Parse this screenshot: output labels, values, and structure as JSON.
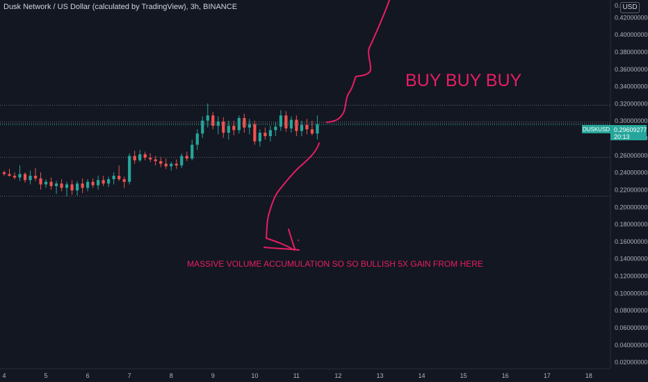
{
  "header": {
    "title": "Dusk Network / US Dollar (calculated by TradingView), 3h, BINANCE"
  },
  "currency_button": {
    "label": "USD"
  },
  "price_tag": {
    "symbol": "DUSKUSD",
    "price": "0.29609277",
    "countdown": "20:13",
    "value": 0.296
  },
  "annotations": {
    "buy_text": "BUY BUY BUY",
    "bottom_text": "MASSIVE VOLUME ACCUMULATION SO SO BULLISH 5X GAIN FROM HERE"
  },
  "colors": {
    "background": "#131722",
    "up": "#26a69a",
    "down": "#ef5350",
    "drawing": "#e91e63",
    "axis_text": "#b2b5be",
    "grid_dotted": "#5d606b"
  },
  "chart_data": {
    "type": "candlestick",
    "y_range": [
      0.012,
      0.44
    ],
    "y_ticks": [
      "0.42000000",
      "0.40000000",
      "0.38000000",
      "0.36000000",
      "0.34000000",
      "0.32000000",
      "0.30000000",
      "0.28000000",
      "0.26000000",
      "0.24000000",
      "0.22000000",
      "0.20000000",
      "0.18000000",
      "0.16000000",
      "0.14000000",
      "0.12000000",
      "0.10000000",
      "0.08000000",
      "0.06000000",
      "0.04000000",
      "0.02000000"
    ],
    "top_tick_partial": "0.4",
    "x_labels": [
      "4",
      "5",
      "6",
      "7",
      "8",
      "9",
      "10",
      "11",
      "12",
      "13",
      "14",
      "15",
      "16",
      "17",
      "18"
    ],
    "x_range": [
      3.9,
      18.52
    ],
    "reference_lines": [
      0.318,
      0.299,
      0.297,
      0.258,
      0.213
    ],
    "candles": [
      [
        4.0,
        0.24,
        0.242,
        0.236,
        0.238
      ],
      [
        4.125,
        0.238,
        0.244,
        0.235,
        0.236
      ],
      [
        4.25,
        0.236,
        0.24,
        0.232,
        0.234
      ],
      [
        4.375,
        0.234,
        0.248,
        0.23,
        0.238
      ],
      [
        4.5,
        0.238,
        0.24,
        0.228,
        0.231
      ],
      [
        4.625,
        0.231,
        0.242,
        0.226,
        0.236
      ],
      [
        4.75,
        0.236,
        0.245,
        0.23,
        0.233
      ],
      [
        4.875,
        0.233,
        0.24,
        0.22,
        0.226
      ],
      [
        5.0,
        0.226,
        0.232,
        0.222,
        0.229
      ],
      [
        5.125,
        0.229,
        0.234,
        0.22,
        0.224
      ],
      [
        5.25,
        0.224,
        0.23,
        0.215,
        0.227
      ],
      [
        5.375,
        0.227,
        0.232,
        0.218,
        0.222
      ],
      [
        5.5,
        0.222,
        0.229,
        0.212,
        0.226
      ],
      [
        5.625,
        0.226,
        0.231,
        0.214,
        0.219
      ],
      [
        5.75,
        0.219,
        0.23,
        0.213,
        0.227
      ],
      [
        5.875,
        0.227,
        0.233,
        0.216,
        0.222
      ],
      [
        6.0,
        0.222,
        0.232,
        0.218,
        0.229
      ],
      [
        6.125,
        0.229,
        0.233,
        0.222,
        0.225
      ],
      [
        6.25,
        0.225,
        0.236,
        0.22,
        0.231
      ],
      [
        6.375,
        0.231,
        0.236,
        0.224,
        0.227
      ],
      [
        6.5,
        0.227,
        0.235,
        0.223,
        0.232
      ],
      [
        6.625,
        0.232,
        0.24,
        0.226,
        0.236
      ],
      [
        6.75,
        0.236,
        0.248,
        0.23,
        0.232
      ],
      [
        6.875,
        0.232,
        0.235,
        0.222,
        0.229
      ],
      [
        7.0,
        0.229,
        0.262,
        0.226,
        0.259
      ],
      [
        7.125,
        0.259,
        0.265,
        0.25,
        0.254
      ],
      [
        7.25,
        0.254,
        0.266,
        0.252,
        0.261
      ],
      [
        7.375,
        0.261,
        0.264,
        0.254,
        0.257
      ],
      [
        7.5,
        0.257,
        0.262,
        0.252,
        0.255
      ],
      [
        7.625,
        0.255,
        0.259,
        0.248,
        0.253
      ],
      [
        7.75,
        0.253,
        0.258,
        0.246,
        0.25
      ],
      [
        7.875,
        0.25,
        0.256,
        0.244,
        0.247
      ],
      [
        8.0,
        0.247,
        0.252,
        0.242,
        0.25
      ],
      [
        8.125,
        0.25,
        0.255,
        0.244,
        0.248
      ],
      [
        8.25,
        0.248,
        0.262,
        0.245,
        0.259
      ],
      [
        8.375,
        0.259,
        0.264,
        0.253,
        0.256
      ],
      [
        8.5,
        0.256,
        0.278,
        0.254,
        0.272
      ],
      [
        8.625,
        0.272,
        0.29,
        0.266,
        0.285
      ],
      [
        8.75,
        0.285,
        0.305,
        0.28,
        0.3
      ],
      [
        8.875,
        0.3,
        0.32,
        0.292,
        0.306
      ],
      [
        9.0,
        0.306,
        0.31,
        0.29,
        0.294
      ],
      [
        9.125,
        0.294,
        0.305,
        0.284,
        0.299
      ],
      [
        9.25,
        0.299,
        0.304,
        0.28,
        0.286
      ],
      [
        9.375,
        0.286,
        0.3,
        0.278,
        0.294
      ],
      [
        9.5,
        0.294,
        0.3,
        0.283,
        0.289
      ],
      [
        9.625,
        0.289,
        0.306,
        0.285,
        0.303
      ],
      [
        9.75,
        0.303,
        0.308,
        0.286,
        0.292
      ],
      [
        9.875,
        0.292,
        0.302,
        0.284,
        0.296
      ],
      [
        10.0,
        0.296,
        0.3,
        0.272,
        0.276
      ],
      [
        10.125,
        0.276,
        0.29,
        0.27,
        0.286
      ],
      [
        10.25,
        0.286,
        0.292,
        0.278,
        0.282
      ],
      [
        10.375,
        0.282,
        0.294,
        0.276,
        0.289
      ],
      [
        10.5,
        0.289,
        0.298,
        0.282,
        0.293
      ],
      [
        10.625,
        0.293,
        0.312,
        0.288,
        0.306
      ],
      [
        10.75,
        0.306,
        0.311,
        0.287,
        0.291
      ],
      [
        10.875,
        0.291,
        0.305,
        0.286,
        0.301
      ],
      [
        11.0,
        0.301,
        0.306,
        0.282,
        0.288
      ],
      [
        11.125,
        0.288,
        0.3,
        0.282,
        0.295
      ],
      [
        11.25,
        0.295,
        0.302,
        0.284,
        0.29
      ],
      [
        11.375,
        0.29,
        0.3,
        0.283,
        0.285
      ],
      [
        11.5,
        0.285,
        0.306,
        0.278,
        0.296
      ]
    ]
  }
}
